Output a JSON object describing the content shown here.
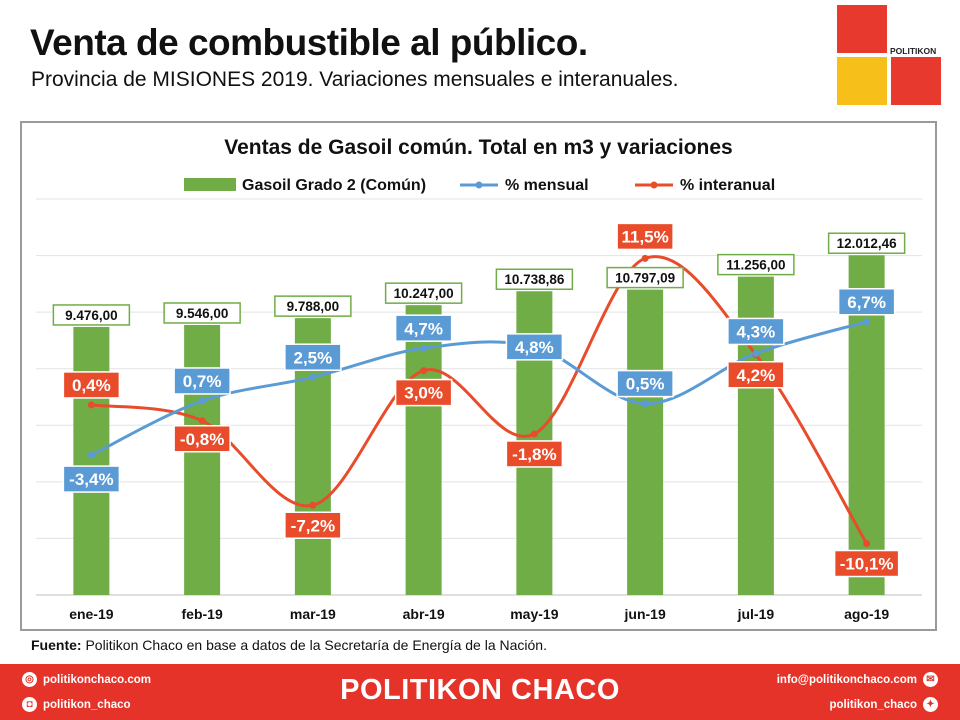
{
  "header": {
    "title": "Venta de combustible al público.",
    "subtitle": "Provincia de MISIONES 2019. Variaciones mensuales e interanuales."
  },
  "logo": {
    "text": "POLITIKON",
    "colors": [
      "#e8392f",
      "#f6bf1a"
    ]
  },
  "chart_data": {
    "type": "bar",
    "title": "Ventas de Gasoil común. Total en m3 y variaciones",
    "categories": [
      "ene-19",
      "feb-19",
      "mar-19",
      "abr-19",
      "may-19",
      "jun-19",
      "jul-19",
      "ago-19"
    ],
    "series": [
      {
        "name": "Gasoil Grado 2 (Común)",
        "type": "bar",
        "color": "#70ad47",
        "values": [
          9476.0,
          9546.0,
          9788.0,
          10247.0,
          10738.86,
          10797.09,
          11256.0,
          12012.46
        ],
        "labels": [
          "9.476,00",
          "9.546,00",
          "9.788,00",
          "10.247,00",
          "10.738,86",
          "10.797,09",
          "11.256,00",
          "12.012,46"
        ]
      },
      {
        "name": "% mensual",
        "type": "line",
        "color": "#5b9bd5",
        "values": [
          -3.4,
          0.7,
          2.5,
          4.7,
          4.8,
          0.5,
          4.3,
          6.7
        ],
        "labels": [
          "-3,4%",
          "0,7%",
          "2,5%",
          "4,7%",
          "4,8%",
          "0,5%",
          "4,3%",
          "6,7%"
        ]
      },
      {
        "name": "% interanual",
        "type": "line",
        "color": "#e84c2b",
        "values": [
          0.4,
          -0.8,
          -7.2,
          3.0,
          -1.8,
          11.5,
          4.2,
          -10.1
        ],
        "labels": [
          "0,4%",
          "-0,8%",
          "-7,2%",
          "3,0%",
          "-1,8%",
          "11,5%",
          "4,2%",
          "-10,1%"
        ]
      }
    ],
    "legend_position": "top",
    "grid": true,
    "bar_ylim": [
      0,
      14000
    ],
    "pct_ylim": [
      -14,
      16
    ]
  },
  "source": {
    "label": "Fuente:",
    "text": " Politikon Chaco en base a datos de la Secretaría  de Energía de la Nación."
  },
  "footer": {
    "brand": "POLITIKON CHACO",
    "web": "politikonchaco.com",
    "instagram": "politikon_chaco",
    "email": "info@politikonchaco.com",
    "twitter": "politikon_chaco",
    "color": "#e63329"
  }
}
